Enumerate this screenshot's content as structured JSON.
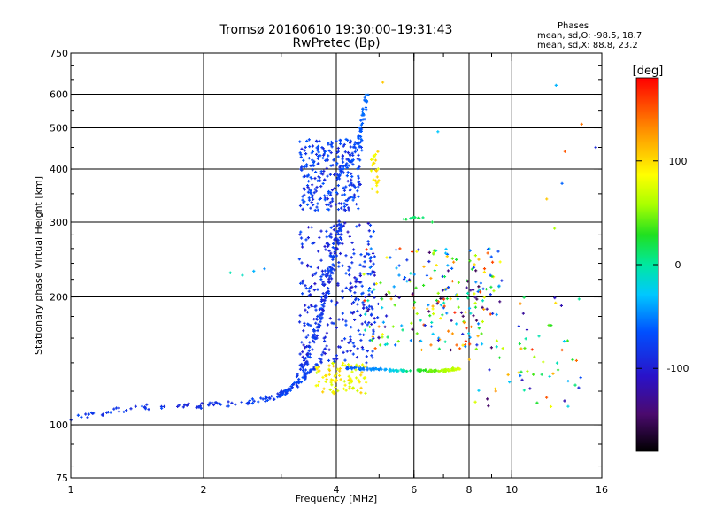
{
  "header": {
    "title_line1": "Tromsø 20160610 19:30:00–19:31:43",
    "title_line2": "RwPretec (Bp)"
  },
  "stats": {
    "heading": "Phases",
    "o_line": "mean, sd,O: -98.5, 18.7",
    "x_line": "mean, sd,X:  88.8, 23.2"
  },
  "colorbar": {
    "unit_label": "[deg]",
    "ticks": [
      "100",
      "0",
      "-100"
    ],
    "tick_values": [
      100,
      0,
      -100
    ],
    "range": [
      -180,
      180
    ]
  },
  "chart_data": {
    "type": "scatter",
    "xlabel": "Frequency [MHz]",
    "ylabel": "Stationary phase Virtual Height [km]",
    "x_scale": "log",
    "y_scale": "log",
    "xlim": [
      1,
      16
    ],
    "ylim": [
      75,
      750
    ],
    "x_ticks": [
      1,
      2,
      4,
      6,
      8,
      10,
      16
    ],
    "x_tick_labels": [
      "1",
      "2",
      "4",
      "6",
      "8",
      "10",
      "16"
    ],
    "y_ticks": [
      75,
      100,
      200,
      300,
      400,
      500,
      600,
      750
    ],
    "y_tick_labels": [
      "75",
      "100",
      "200",
      "300",
      "400",
      "500",
      "600",
      "750"
    ],
    "grid_x": [
      2,
      4,
      6,
      8,
      10
    ],
    "grid_y": [
      100,
      200,
      300,
      400,
      500,
      600
    ],
    "legend": "colorbar-right",
    "series": [
      {
        "trace": "low-E trace",
        "mode": "curve",
        "x": [
          1.0,
          1.2,
          1.4,
          1.6,
          1.8,
          2.0,
          2.3,
          2.6,
          2.9,
          3.1,
          3.3,
          3.5,
          3.7
        ],
        "y": [
          104,
          107,
          110,
          110,
          111,
          111,
          112,
          114,
          116,
          120,
          126,
          134,
          142
        ],
        "phase": [
          -100,
          -100,
          -100,
          -100,
          -110,
          -105,
          -100,
          -100,
          -100,
          -100,
          -95,
          -100,
          -100
        ],
        "count": 160,
        "spread": 0.018
      },
      {
        "trace": "F1 rising wall",
        "mode": "curve",
        "x": [
          3.3,
          3.45,
          3.6,
          3.7,
          3.8,
          3.9,
          4.0,
          4.1
        ],
        "y": [
          130,
          145,
          165,
          185,
          210,
          240,
          270,
          300
        ],
        "phase": [
          -100,
          -100,
          -100,
          -100,
          -110,
          -100,
          -100,
          -100
        ],
        "count": 150,
        "spread": 0.03
      },
      {
        "trace": "F cluster",
        "mode": "cloud",
        "x": [
          3.3,
          4.6
        ],
        "y": [
          320,
          470
        ],
        "phase": [
          -115,
          -85
        ],
        "count": 260
      },
      {
        "trace": "F2 cusp",
        "mode": "curve",
        "x": [
          4.0,
          4.3,
          4.5,
          4.6,
          4.7
        ],
        "y": [
          380,
          420,
          470,
          530,
          600
        ],
        "phase": [
          -100,
          -95,
          -90,
          -80,
          -70
        ],
        "count": 70,
        "spread": 0.02
      },
      {
        "trace": "mid scatter",
        "mode": "cloud",
        "x": [
          3.3,
          4.9
        ],
        "y": [
          140,
          300
        ],
        "phase": [
          -120,
          -90
        ],
        "count": 300
      },
      {
        "trace": "X echo cluster",
        "mode": "cloud",
        "x": [
          3.6,
          4.7
        ],
        "y": [
          118,
          140
        ],
        "phase": [
          70,
          110
        ],
        "count": 90
      },
      {
        "trace": "flat trace ~135 km",
        "mode": "curve",
        "x": [
          4.2,
          5.0,
          6.0,
          7.0,
          7.6
        ],
        "y": [
          136,
          135,
          134,
          134,
          136
        ],
        "phase": [
          -90,
          -60,
          20,
          60,
          80
        ],
        "count": 120,
        "spread": 0.008
      },
      {
        "trace": "X upper cluster",
        "mode": "cloud",
        "x": [
          4.8,
          5.0
        ],
        "y": [
          350,
          440
        ],
        "phase": [
          80,
          110
        ],
        "count": 25
      },
      {
        "trace": "high scatter",
        "mode": "cloud",
        "x": [
          4.6,
          9.5
        ],
        "y": [
          150,
          260
        ],
        "phase": [
          -160,
          170
        ],
        "count": 240
      },
      {
        "trace": "far scatter",
        "mode": "cloud",
        "x": [
          8.0,
          15.0
        ],
        "y": [
          110,
          200
        ],
        "phase": [
          -160,
          170
        ],
        "count": 60
      },
      {
        "trace": "green segment",
        "mode": "curve",
        "x": [
          5.7,
          6.3
        ],
        "y": [
          305,
          308
        ],
        "phase": [
          20,
          10
        ],
        "count": 12,
        "spread": 0.006
      },
      {
        "trace": "isolated pts",
        "mode": "points",
        "x": [
          2.45,
          2.6,
          2.75,
          12.6,
          14.4,
          13.2,
          6.8,
          12.0,
          13.0,
          2.3,
          5.1,
          6.6,
          15.5,
          8.8,
          13.0,
          12.5,
          9.2
        ],
        "y": [
          225,
          230,
          233,
          630,
          510,
          440,
          490,
          340,
          370,
          228,
          640,
          300,
          450,
          115,
          150,
          290,
          120
        ],
        "phase": [
          -10,
          -40,
          -60,
          -40,
          140,
          150,
          -30,
          110,
          -80,
          -5,
          110,
          20,
          -110,
          -150,
          150,
          60,
          130
        ],
        "count": 17
      }
    ]
  }
}
